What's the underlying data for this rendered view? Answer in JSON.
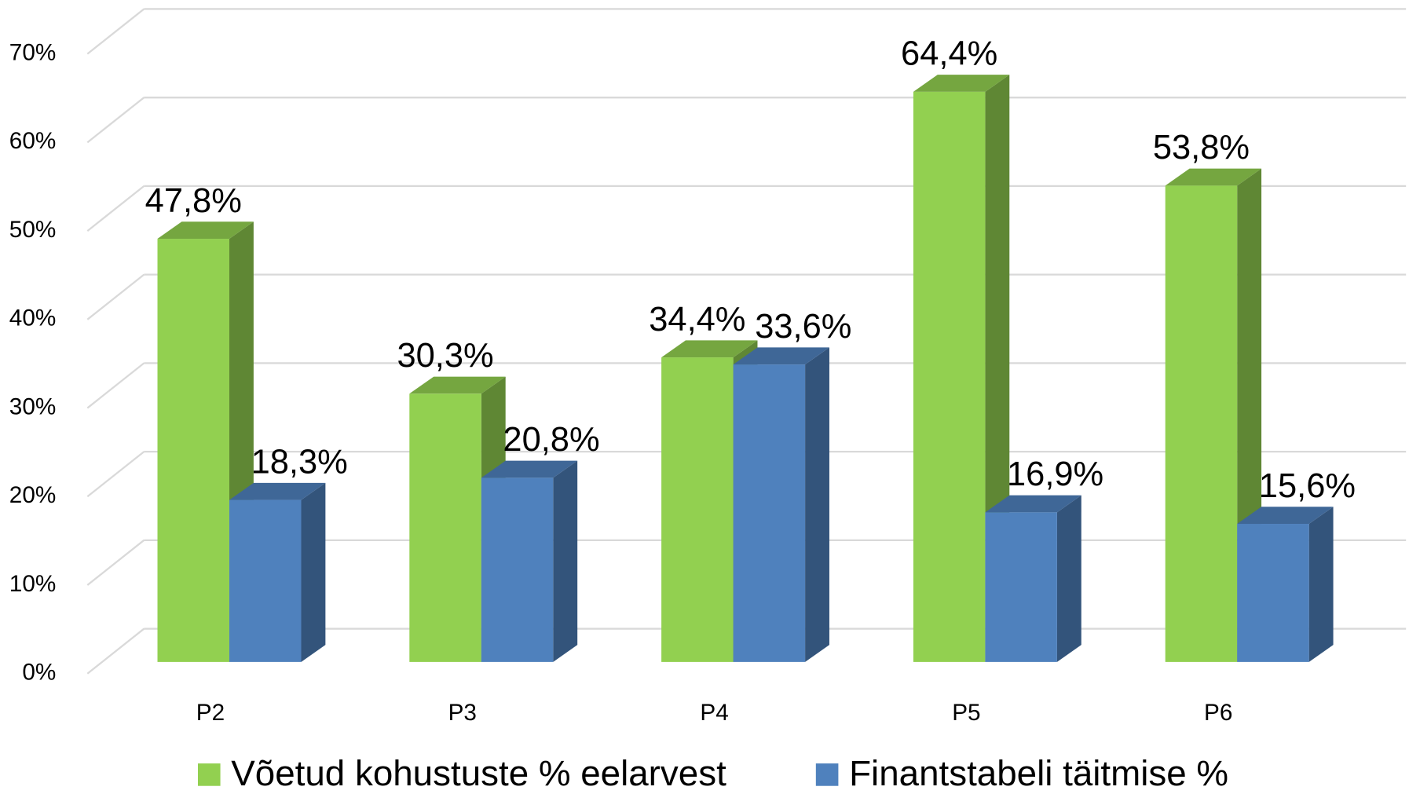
{
  "chart_data": {
    "type": "bar3d",
    "categories": [
      "P2",
      "P3",
      "P4",
      "P5",
      "P6"
    ],
    "series": [
      {
        "name": "Võetud kohustuste % eelarvest",
        "color": "#92d050",
        "values": [
          47.8,
          30.3,
          34.4,
          64.4,
          53.8
        ],
        "value_labels": [
          "47,8%",
          "30,3%",
          "34,4%",
          "64,4%",
          "53,8%"
        ]
      },
      {
        "name": "Finantstabeli täitmise %",
        "color": "#4f81bd",
        "values": [
          18.3,
          20.8,
          33.6,
          16.9,
          15.6
        ],
        "value_labels": [
          "18,3%",
          "20,8%",
          "33,6%",
          "16,9%",
          "15,6%"
        ]
      }
    ],
    "ylim": [
      0,
      70
    ],
    "yticks": [
      {
        "value": 0,
        "label": "0%"
      },
      {
        "value": 10,
        "label": "10%"
      },
      {
        "value": 20,
        "label": "20%"
      },
      {
        "value": 30,
        "label": "30%"
      },
      {
        "value": 40,
        "label": "40%"
      },
      {
        "value": 50,
        "label": "50%"
      },
      {
        "value": 60,
        "label": "60%"
      },
      {
        "value": 70,
        "label": "70%"
      }
    ],
    "grid": true,
    "legend": "bottom"
  }
}
